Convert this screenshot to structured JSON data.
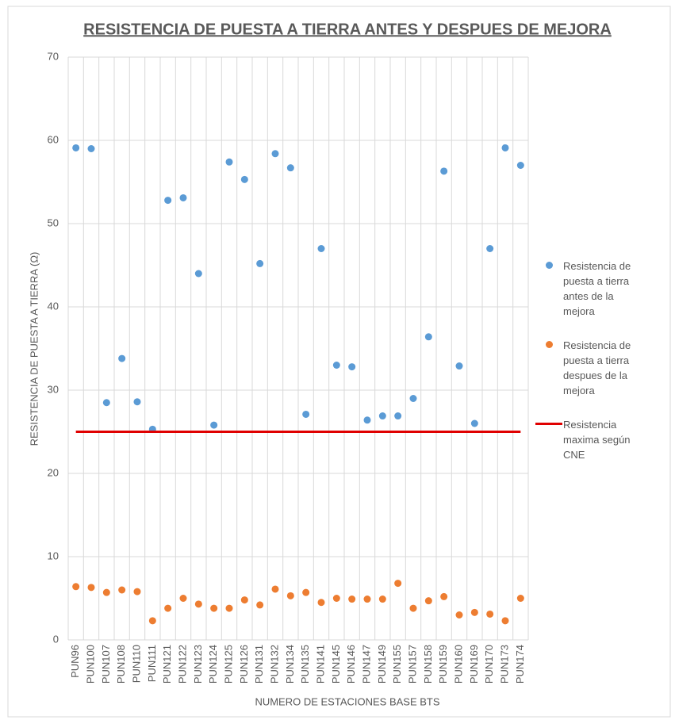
{
  "chart_data": {
    "type": "scatter",
    "title": "RESISTENCIA DE PUESTA A TIERRA ANTES Y DESPUES DE MEJORA",
    "x_label": "NUMERO DE ESTACIONES BASE BTS",
    "y_label": "RESISTENCIA DE PUESTA A TIERRA (Ω)",
    "categories": [
      "PUN96",
      "PUN100",
      "PUN107",
      "PUN108",
      "PUN110",
      "PUN111",
      "PUN121",
      "PUN122",
      "PUN123",
      "PUN124",
      "PUN125",
      "PUN126",
      "PUN131",
      "PUN132",
      "PUN134",
      "PUN135",
      "PUN141",
      "PUN145",
      "PUN146",
      "PUN147",
      "PUN149",
      "PUN155",
      "PUN157",
      "PUN158",
      "PUN159",
      "PUN160",
      "PUN169",
      "PUN170",
      "PUN173",
      "PUN174"
    ],
    "series": [
      {
        "name": "Resistencia de puesta a tierra antes de la mejora",
        "type": "scatter",
        "color": "#5b9bd5",
        "values": [
          59.1,
          59.0,
          28.5,
          33.8,
          28.6,
          25.3,
          52.8,
          53.1,
          44.0,
          25.8,
          57.4,
          55.3,
          45.2,
          58.4,
          56.7,
          27.1,
          47.0,
          33.0,
          32.8,
          26.4,
          26.9,
          26.9,
          29.0,
          36.4,
          56.3,
          32.9,
          26.0,
          47.0,
          59.1,
          57.0
        ]
      },
      {
        "name": "Resistencia de puesta a tierra despues de la mejora",
        "type": "scatter",
        "color": "#ed7d31",
        "values": [
          6.4,
          6.3,
          5.7,
          6.0,
          5.8,
          2.3,
          3.8,
          5.0,
          4.3,
          3.8,
          3.8,
          4.8,
          4.2,
          6.1,
          5.3,
          5.7,
          4.5,
          5.0,
          4.9,
          4.9,
          4.9,
          6.8,
          3.8,
          4.7,
          5.2,
          3.0,
          3.3,
          3.1,
          2.3,
          5.0
        ]
      },
      {
        "name": "Resistencia maxima según CNE",
        "type": "line",
        "color": "#e00000",
        "values": [
          25,
          25,
          25,
          25,
          25,
          25,
          25,
          25,
          25,
          25,
          25,
          25,
          25,
          25,
          25,
          25,
          25,
          25,
          25,
          25,
          25,
          25,
          25,
          25,
          25,
          25,
          25,
          25,
          25,
          25
        ]
      }
    ],
    "ylim": [
      0,
      70
    ],
    "yticks": [
      0,
      10,
      20,
      30,
      40,
      50,
      60,
      70
    ],
    "grid": true,
    "legend": "right"
  }
}
